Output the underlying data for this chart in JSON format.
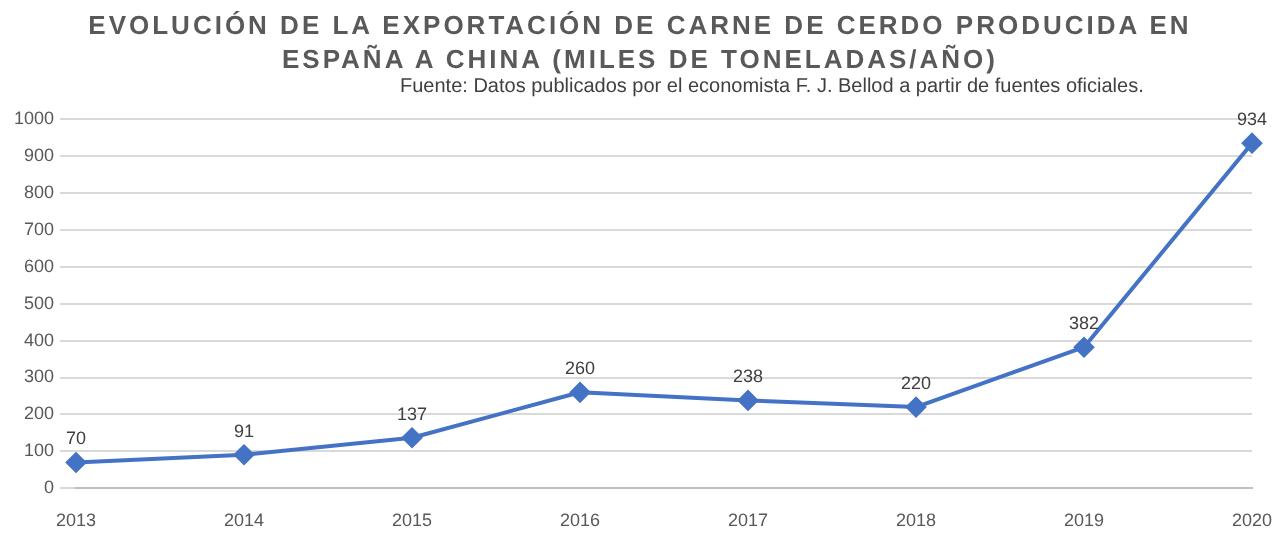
{
  "chart_data": {
    "type": "line",
    "title": "EVOLUCIÓN DE LA EXPORTACIÓN DE CARNE DE CERDO PRODUCIDA EN ESPAÑA A CHINA (MILES DE TONELADAS/AÑO)",
    "subtitle": "Fuente: Datos publicados por el economista F. J. Bellod a partir de fuentes oficiales.",
    "categories": [
      "2013",
      "2014",
      "2015",
      "2016",
      "2017",
      "2018",
      "2019",
      "2020"
    ],
    "series": [
      {
        "color": "#4472c4",
        "values": [
          70,
          91,
          137,
          260,
          238,
          220,
          382,
          934
        ]
      }
    ],
    "ylim": [
      0,
      1000
    ],
    "yticks": [
      0,
      100,
      200,
      300,
      400,
      500,
      600,
      700,
      800,
      900,
      1000
    ],
    "grid": "y",
    "marker": "diamond",
    "line_style": "solid",
    "data_labels": true,
    "legend": false
  }
}
